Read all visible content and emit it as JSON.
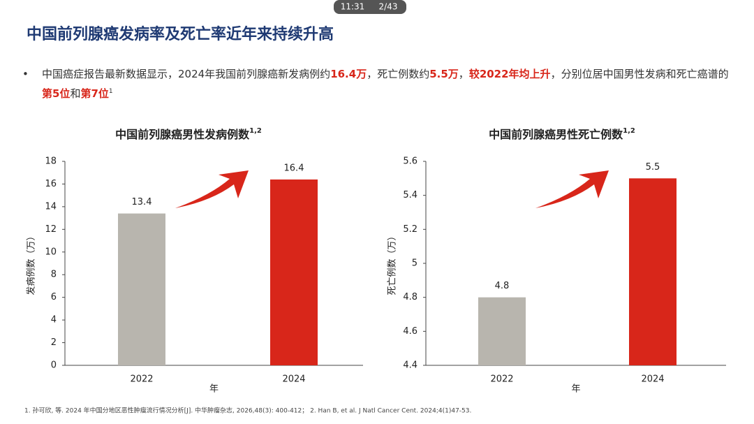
{
  "status_bar": {
    "time": "11:31",
    "page": "2/43"
  },
  "slide_title": "中国前列腺癌发病率及死亡率近年来持续升高",
  "bullet": [
    {
      "text": "中国癌症报告最新数据显示，2024年我国前列腺癌新发病例约",
      "style": "plain"
    },
    {
      "text": "16.4万",
      "style": "red"
    },
    {
      "text": "，死亡例数约",
      "style": "plain"
    },
    {
      "text": "5.5万",
      "style": "red"
    },
    {
      "text": "，",
      "style": "plain"
    },
    {
      "text": "较2022年均上升",
      "style": "red"
    },
    {
      "text": "，分别位居中国男性发病和死亡癌谱的",
      "style": "plain"
    },
    {
      "text": "第5位",
      "style": "red"
    },
    {
      "text": "和",
      "style": "plain"
    },
    {
      "text": "第7位",
      "style": "red"
    },
    {
      "text": "1",
      "style": "sup"
    }
  ],
  "chart_data": [
    {
      "type": "bar",
      "title": "中国前列腺癌男性发病例数",
      "title_sup": "1,2",
      "categories": [
        "2022",
        "2024"
      ],
      "values": [
        13.4,
        16.4
      ],
      "colors": [
        "#b8b5ae",
        "#d8261a"
      ],
      "ylim": [
        0,
        18
      ],
      "yticks": [
        0,
        2,
        4,
        6,
        8,
        10,
        12,
        14,
        16,
        18
      ],
      "y_label": "发病例数（万）",
      "x_label": "年"
    },
    {
      "type": "bar",
      "title": "中国前列腺癌男性死亡例数",
      "title_sup": "1,2",
      "categories": [
        "2022",
        "2024"
      ],
      "values": [
        4.8,
        5.5
      ],
      "colors": [
        "#b8b5ae",
        "#d8261a"
      ],
      "ylim": [
        4.4,
        5.6
      ],
      "yticks": [
        4.4,
        4.6,
        4.8,
        5,
        5.2,
        5.4,
        5.6
      ],
      "y_label": "死亡例数（万）",
      "x_label": "年"
    }
  ],
  "footnote": "1. 孙可欣, 等. 2024 年中国分地区恶性肿瘤流行情况分析[J]. 中华肿瘤杂志, 2026,48(3): 400-412； 2. Han B, et al. J Natl Cancer Cent. 2024;4(1)47-53."
}
